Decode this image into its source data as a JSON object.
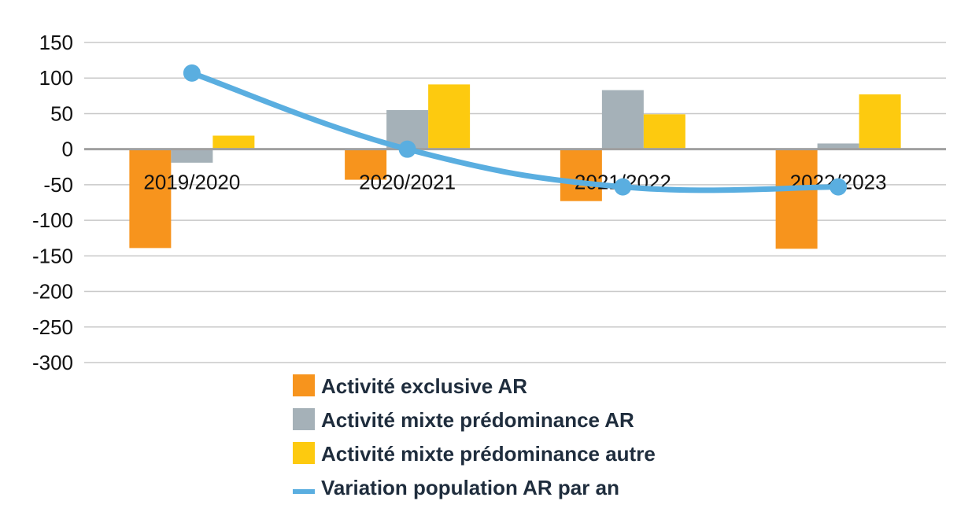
{
  "chart_data": {
    "type": "bar",
    "categories": [
      "2019/2020",
      "2020/2021",
      "2021/2022",
      "2022/2023"
    ],
    "ylim": [
      -300,
      150
    ],
    "yticks": [
      150,
      100,
      50,
      0,
      -50,
      -100,
      -150,
      -200,
      -250,
      -300
    ],
    "ytick_labels": [
      "150",
      "100",
      "50",
      "0",
      "-50",
      "-100",
      "-150",
      "-200",
      "-250",
      "-300"
    ],
    "grid": true,
    "legend_position": "bottom",
    "series": [
      {
        "name": "Activité exclusive AR",
        "kind": "bar",
        "color": "#f7941d",
        "values": [
          -139,
          -43,
          -73,
          -140
        ]
      },
      {
        "name": "Activité mixte prédominance AR",
        "kind": "bar",
        "color": "#a5b1b8",
        "values": [
          -19,
          55,
          83,
          8
        ]
      },
      {
        "name": "Activité mixte prédominance autre",
        "kind": "bar",
        "color": "#fdca0f",
        "values": [
          19,
          91,
          49,
          77
        ]
      },
      {
        "name": "Variation population AR par an",
        "kind": "line",
        "color": "#5aaee0",
        "values": [
          107,
          0,
          -53,
          -53
        ]
      }
    ]
  }
}
